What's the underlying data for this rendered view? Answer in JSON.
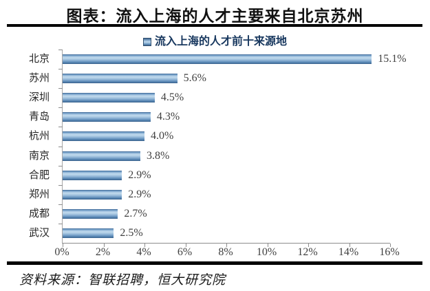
{
  "header": {
    "title": "图表：流入上海的人才主要来自北京苏州"
  },
  "chart_data": {
    "type": "bar",
    "orientation": "horizontal",
    "title": "流入上海的人才前十来源地",
    "legend": "流入上海的人才前十来源地",
    "legend_position": "top-center",
    "categories": [
      "北京",
      "苏州",
      "深圳",
      "青岛",
      "杭州",
      "南京",
      "合肥",
      "郑州",
      "成都",
      "武汉"
    ],
    "values": [
      15.1,
      5.6,
      4.5,
      4.3,
      4.0,
      3.8,
      2.9,
      2.9,
      2.7,
      2.5
    ],
    "data_labels": [
      "15.1%",
      "5.6%",
      "4.5%",
      "4.3%",
      "4.0%",
      "3.8%",
      "2.9%",
      "2.9%",
      "2.7%",
      "2.5%"
    ],
    "xlim": [
      0,
      16
    ],
    "x_ticks": [
      "0%",
      "2%",
      "4%",
      "6%",
      "8%",
      "10%",
      "12%",
      "14%",
      "16%"
    ],
    "grid": false,
    "bar_color_base": "#6d9ac4",
    "bar_color_dark": "#3a618c",
    "bar_color_light": "#bed8ec"
  },
  "footer": {
    "source": "资料来源：智联招聘，恒大研究院"
  }
}
